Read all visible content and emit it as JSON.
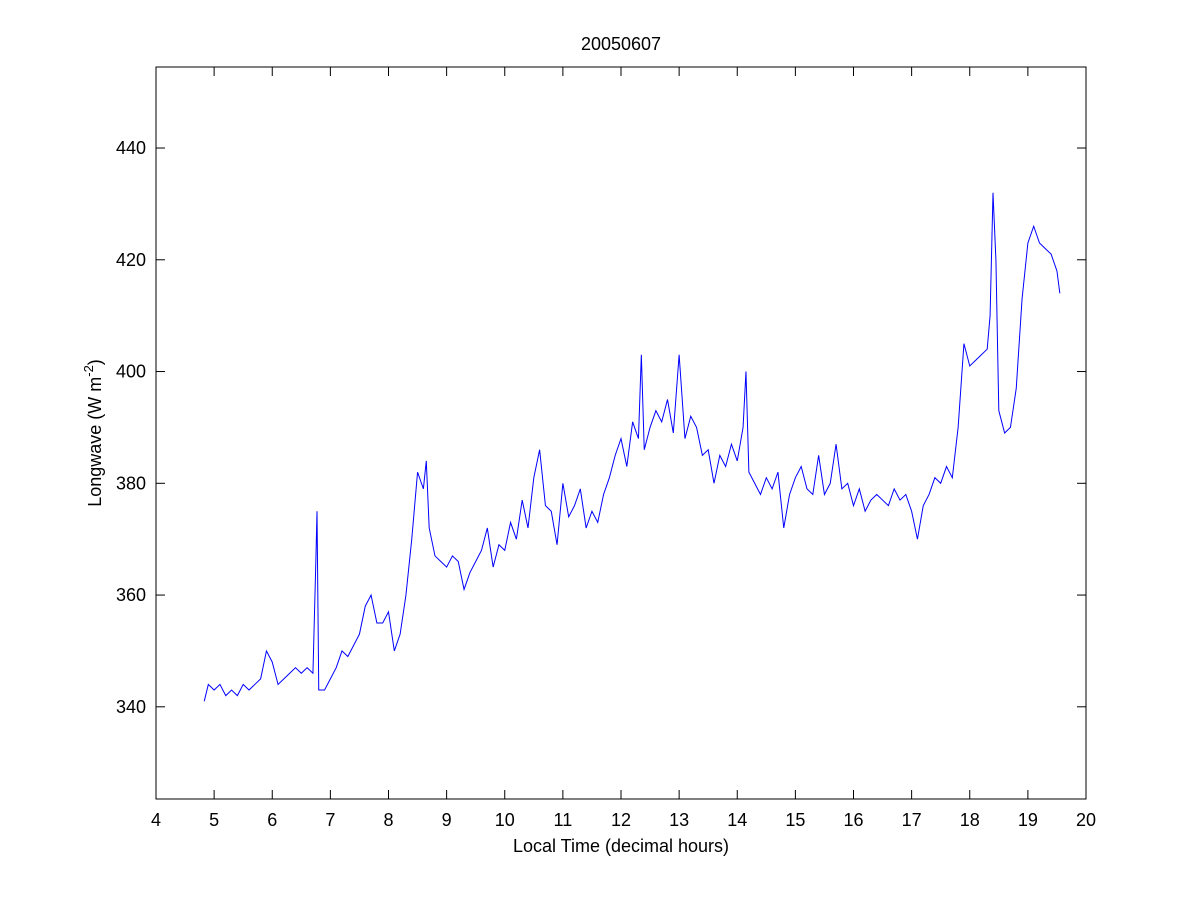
{
  "chart_data": {
    "type": "line",
    "title": "20050607",
    "xlabel": "Local Time (decimal hours)",
    "ylabel": {
      "text": "Longwave (W m",
      "sup": "-2",
      "end": ")"
    },
    "color": "#0000ff",
    "xlim": [
      4,
      20
    ],
    "xticks": [
      4,
      5,
      6,
      7,
      8,
      9,
      10,
      11,
      12,
      13,
      14,
      15,
      16,
      17,
      18,
      19,
      20
    ],
    "ylim": [
      323.5,
      454.5
    ],
    "yticks": [
      340,
      360,
      380,
      400,
      420,
      440
    ],
    "x": [
      4.83,
      4.9,
      5.0,
      5.1,
      5.2,
      5.3,
      5.4,
      5.5,
      5.6,
      5.7,
      5.8,
      5.9,
      6.0,
      6.1,
      6.2,
      6.3,
      6.4,
      6.5,
      6.6,
      6.7,
      6.75,
      6.77,
      6.8,
      6.9,
      7.0,
      7.1,
      7.2,
      7.3,
      7.4,
      7.5,
      7.6,
      7.7,
      7.8,
      7.9,
      8.0,
      8.1,
      8.2,
      8.3,
      8.4,
      8.5,
      8.6,
      8.65,
      8.7,
      8.8,
      8.9,
      9.0,
      9.1,
      9.2,
      9.3,
      9.4,
      9.5,
      9.6,
      9.7,
      9.8,
      9.9,
      10.0,
      10.1,
      10.2,
      10.3,
      10.4,
      10.5,
      10.6,
      10.7,
      10.8,
      10.9,
      11.0,
      11.1,
      11.2,
      11.3,
      11.4,
      11.5,
      11.6,
      11.7,
      11.8,
      11.9,
      12.0,
      12.1,
      12.2,
      12.3,
      12.35,
      12.4,
      12.5,
      12.6,
      12.7,
      12.8,
      12.9,
      13.0,
      13.1,
      13.2,
      13.3,
      13.4,
      13.5,
      13.6,
      13.7,
      13.8,
      13.9,
      14.0,
      14.1,
      14.15,
      14.2,
      14.3,
      14.4,
      14.5,
      14.6,
      14.7,
      14.8,
      14.9,
      15.0,
      15.1,
      15.2,
      15.3,
      15.4,
      15.5,
      15.6,
      15.7,
      15.8,
      15.9,
      16.0,
      16.1,
      16.2,
      16.3,
      16.4,
      16.5,
      16.6,
      16.7,
      16.8,
      16.9,
      17.0,
      17.1,
      17.2,
      17.3,
      17.4,
      17.5,
      17.6,
      17.7,
      17.8,
      17.9,
      18.0,
      18.1,
      18.2,
      18.3,
      18.35,
      18.4,
      18.45,
      18.5,
      18.6,
      18.7,
      18.8,
      18.9,
      19.0,
      19.1,
      19.2,
      19.3,
      19.4,
      19.5,
      19.55
    ],
    "values": [
      341,
      344,
      343,
      344,
      342,
      343,
      342,
      344,
      343,
      344,
      345,
      350,
      348,
      344,
      345,
      346,
      347,
      346,
      347,
      346,
      366,
      375,
      343,
      343,
      345,
      347,
      350,
      349,
      351,
      353,
      358,
      360,
      355,
      355,
      357,
      350,
      353,
      360,
      370,
      382,
      379,
      384,
      372,
      367,
      366,
      365,
      367,
      366,
      361,
      364,
      366,
      368,
      372,
      365,
      369,
      368,
      373,
      370,
      377,
      372,
      381,
      386,
      376,
      375,
      369,
      380,
      374,
      376,
      379,
      372,
      375,
      373,
      378,
      381,
      385,
      388,
      383,
      391,
      388,
      403,
      386,
      390,
      393,
      391,
      395,
      389,
      403,
      388,
      392,
      390,
      385,
      386,
      380,
      385,
      383,
      387,
      384,
      390,
      400,
      382,
      380,
      378,
      381,
      379,
      382,
      372,
      378,
      381,
      383,
      379,
      378,
      385,
      378,
      380,
      387,
      379,
      380,
      376,
      379,
      375,
      377,
      378,
      377,
      376,
      379,
      377,
      378,
      375,
      370,
      376,
      378,
      381,
      380,
      383,
      381,
      390,
      405,
      401,
      402,
      403,
      404,
      410,
      432,
      420,
      393,
      389,
      390,
      397,
      413,
      423,
      426,
      423,
      422,
      421,
      418,
      414
    ]
  }
}
